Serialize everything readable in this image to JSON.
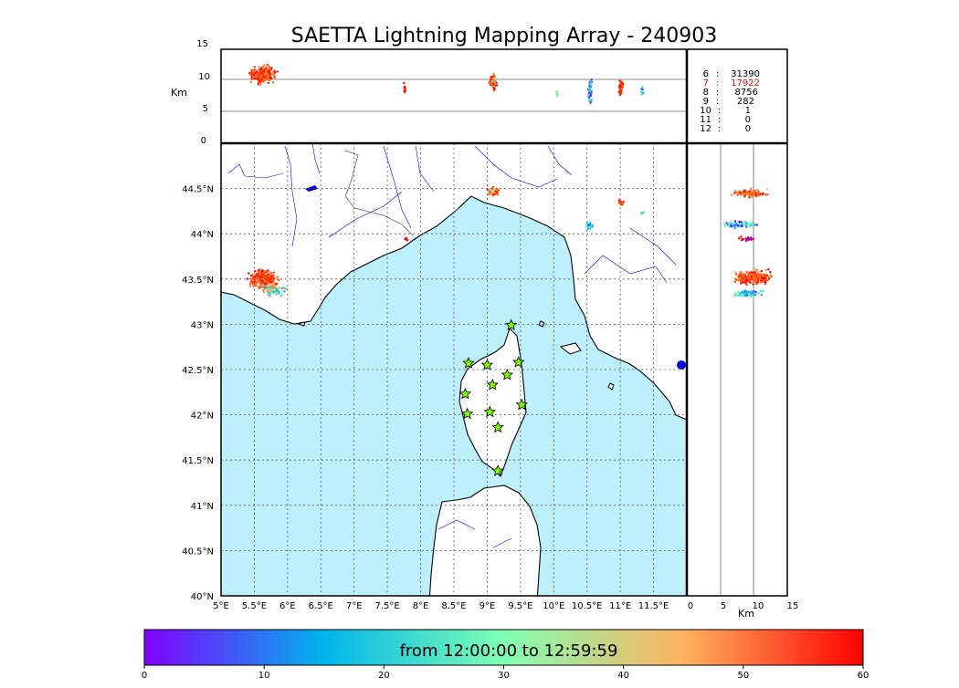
{
  "title": "SAETTA Lightning Mapping Array - 240903",
  "top_panel": {
    "axis_label": "Km",
    "ticks": [
      "15",
      "10",
      "5",
      "0"
    ]
  },
  "side_panel": {
    "axis_label": "Km",
    "ticks": [
      "0",
      "5",
      "10",
      "15"
    ]
  },
  "counts": [
    {
      "level": "6",
      "sep": ":",
      "value": "31390",
      "color": "#000000"
    },
    {
      "level": "7",
      "sep": ":",
      "value": "17922",
      "color": "#ff0000"
    },
    {
      "level": "8",
      "sep": ":",
      "value": "8756",
      "color": "#000000"
    },
    {
      "level": "9",
      "sep": ":",
      "value": "282",
      "color": "#000000"
    },
    {
      "level": "10",
      "sep": ":",
      "value": "1",
      "color": "#000000"
    },
    {
      "level": "11",
      "sep": ":",
      "value": "0",
      "color": "#000000"
    },
    {
      "level": "12",
      "sep": ":",
      "value": "0",
      "color": "#000000"
    }
  ],
  "map": {
    "lon_ticks": [
      "5°E",
      "5.5°E",
      "6°E",
      "6.5°E",
      "7°E",
      "7.5°E",
      "8°E",
      "8.5°E",
      "9°E",
      "9.5°E",
      "10°E",
      "10.5°E",
      "11°E",
      "11.5°E"
    ],
    "lat_ticks": [
      "40°N",
      "40.5°N",
      "41°N",
      "41.5°N",
      "42°N",
      "42.5°N",
      "43°N",
      "43.5°N",
      "44°N",
      "44.5°N"
    ],
    "lon_range": [
      5.0,
      12.0
    ],
    "lat_range": [
      40.0,
      45.0
    ],
    "sea_color": "#bdeffc",
    "land_color": "#ffffff",
    "grid": "dotted",
    "stations": [
      {
        "lon": 9.36,
        "lat": 42.99
      },
      {
        "lon": 8.72,
        "lat": 42.57
      },
      {
        "lon": 9.0,
        "lat": 42.55
      },
      {
        "lon": 9.47,
        "lat": 42.58
      },
      {
        "lon": 9.3,
        "lat": 42.44
      },
      {
        "lon": 9.08,
        "lat": 42.33
      },
      {
        "lon": 8.67,
        "lat": 42.23
      },
      {
        "lon": 9.52,
        "lat": 42.11
      },
      {
        "lon": 8.7,
        "lat": 42.01
      },
      {
        "lon": 9.04,
        "lat": 42.03
      },
      {
        "lon": 9.16,
        "lat": 41.86
      },
      {
        "lon": 9.16,
        "lat": 41.38
      }
    ],
    "station_color": "#7fff00"
  },
  "colorbar": {
    "caption": "from 12:00:00 to 12:59:59",
    "ticks": [
      "0",
      "10",
      "20",
      "30",
      "40",
      "50",
      "60"
    ],
    "colors": [
      "#7f00ff",
      "#00b4eb",
      "#80ffb4",
      "#ffb360",
      "#ff0000"
    ]
  }
}
